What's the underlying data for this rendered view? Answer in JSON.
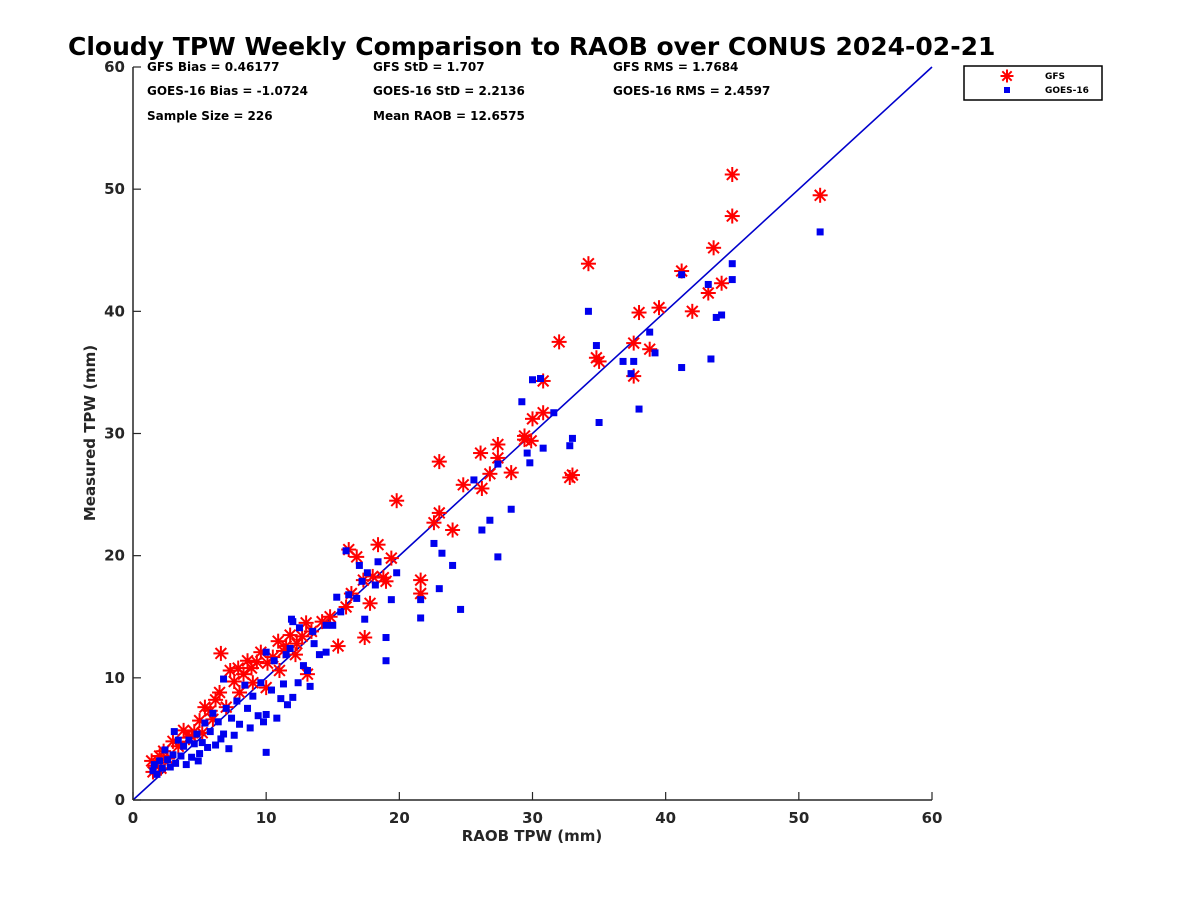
{
  "chart_data": {
    "type": "scatter",
    "title": "Cloudy TPW Weekly Comparison to RAOB over CONUS 2024-02-21",
    "xlabel": "RAOB TPW (mm)",
    "ylabel": "Measured TPW (mm)",
    "xlim": [
      0,
      60
    ],
    "ylim": [
      0,
      60
    ],
    "xticks": [
      "0",
      "10",
      "20",
      "30",
      "40",
      "50",
      "60"
    ],
    "yticks": [
      "0",
      "10",
      "20",
      "30",
      "40",
      "50",
      "60"
    ],
    "grid": false,
    "legend_position": "top-right",
    "stats": [
      [
        "GFS Bias = 0.46177",
        "GFS StD = 1.707",
        "GFS RMS = 1.7684"
      ],
      [
        "GOES-16 Bias = -1.0724",
        "GOES-16 StD = 2.2136",
        "GOES-16 RMS = 2.4597"
      ],
      [
        "Sample Size = 226",
        "Mean RAOB = 12.6575"
      ]
    ],
    "reference_line": {
      "from": [
        0,
        0
      ],
      "to": [
        60,
        60
      ],
      "color": "#0000cc"
    },
    "series": [
      {
        "name": "GFS",
        "marker": "asterisk",
        "color": "#ff0000",
        "points": [
          [
            51.6,
            49.5
          ],
          [
            45.0,
            51.2
          ],
          [
            45.0,
            47.8
          ],
          [
            34.2,
            43.9
          ],
          [
            41.2,
            43.3
          ],
          [
            43.6,
            45.2
          ],
          [
            44.2,
            42.3
          ],
          [
            43.2,
            41.5
          ],
          [
            42.0,
            40.0
          ],
          [
            39.5,
            40.3
          ],
          [
            38.0,
            39.9
          ],
          [
            38.8,
            36.9
          ],
          [
            37.6,
            37.4
          ],
          [
            37.6,
            34.7
          ],
          [
            34.8,
            36.2
          ],
          [
            35.0,
            35.9
          ],
          [
            32.0,
            37.5
          ],
          [
            30.8,
            34.3
          ],
          [
            30.8,
            31.7
          ],
          [
            30.0,
            31.2
          ],
          [
            29.4,
            29.5
          ],
          [
            29.9,
            29.4
          ],
          [
            29.4,
            29.8
          ],
          [
            27.4,
            29.1
          ],
          [
            27.4,
            28.0
          ],
          [
            26.1,
            28.4
          ],
          [
            26.8,
            26.7
          ],
          [
            28.4,
            26.8
          ],
          [
            32.8,
            26.4
          ],
          [
            33.0,
            26.6
          ],
          [
            26.2,
            25.5
          ],
          [
            24.8,
            25.8
          ],
          [
            23.0,
            27.7
          ],
          [
            19.8,
            24.5
          ],
          [
            23.0,
            23.5
          ],
          [
            22.6,
            22.7
          ],
          [
            24.0,
            22.1
          ],
          [
            21.6,
            18.0
          ],
          [
            21.6,
            16.9
          ],
          [
            19.4,
            19.8
          ],
          [
            19.0,
            17.9
          ],
          [
            18.8,
            18.2
          ],
          [
            18.4,
            20.9
          ],
          [
            18.0,
            18.3
          ],
          [
            17.8,
            16.1
          ],
          [
            17.3,
            18.0
          ],
          [
            16.8,
            19.9
          ],
          [
            16.2,
            20.5
          ],
          [
            16.4,
            16.9
          ],
          [
            16.0,
            15.8
          ],
          [
            15.4,
            12.6
          ],
          [
            17.4,
            13.3
          ],
          [
            14.2,
            14.6
          ],
          [
            13.4,
            13.8
          ],
          [
            13.1,
            10.3
          ],
          [
            12.7,
            13.4
          ],
          [
            12.3,
            12.8
          ],
          [
            11.8,
            13.5
          ],
          [
            11.3,
            12.2
          ],
          [
            10.9,
            13.0
          ],
          [
            10.5,
            11.7
          ],
          [
            10.1,
            11.2
          ],
          [
            9.6,
            12.1
          ],
          [
            9.3,
            11.3
          ],
          [
            8.9,
            10.8
          ],
          [
            8.6,
            11.4
          ],
          [
            8.3,
            10.3
          ],
          [
            7.9,
            10.8
          ],
          [
            7.6,
            9.7
          ],
          [
            7.3,
            10.6
          ],
          [
            6.6,
            12.0
          ],
          [
            6.5,
            8.8
          ],
          [
            6.2,
            8.2
          ],
          [
            5.8,
            7.3
          ],
          [
            5.4,
            7.6
          ],
          [
            5.0,
            6.5
          ],
          [
            4.6,
            5.6
          ],
          [
            4.2,
            5.1
          ],
          [
            3.8,
            5.7
          ],
          [
            3.4,
            4.4
          ],
          [
            3.0,
            4.8
          ],
          [
            2.6,
            3.4
          ],
          [
            2.3,
            4.0
          ],
          [
            2.0,
            3.6
          ],
          [
            1.7,
            2.8
          ],
          [
            1.5,
            2.3
          ],
          [
            1.4,
            3.2
          ],
          [
            2.1,
            2.6
          ],
          [
            10.0,
            9.2
          ],
          [
            11.5,
            12.6
          ],
          [
            12.2,
            11.9
          ],
          [
            13.0,
            14.5
          ],
          [
            14.8,
            15.0
          ],
          [
            9.0,
            9.6
          ],
          [
            8.0,
            8.8
          ],
          [
            7.0,
            7.6
          ],
          [
            11.0,
            10.6
          ],
          [
            6.0,
            6.6
          ],
          [
            5.2,
            5.5
          ],
          [
            4.4,
            5.2
          ]
        ]
      },
      {
        "name": "GOES-16",
        "marker": "square",
        "color": "#0000ee",
        "points": [
          [
            51.6,
            46.5
          ],
          [
            45.0,
            43.9
          ],
          [
            45.0,
            42.6
          ],
          [
            43.2,
            42.2
          ],
          [
            41.2,
            43.0
          ],
          [
            44.2,
            39.7
          ],
          [
            43.8,
            39.5
          ],
          [
            43.4,
            36.1
          ],
          [
            41.2,
            35.4
          ],
          [
            38.8,
            38.3
          ],
          [
            39.2,
            36.6
          ],
          [
            38.0,
            32.0
          ],
          [
            37.6,
            35.9
          ],
          [
            37.4,
            34.9
          ],
          [
            36.8,
            35.9
          ],
          [
            34.2,
            40.0
          ],
          [
            34.8,
            37.2
          ],
          [
            35.0,
            30.9
          ],
          [
            32.8,
            29.0
          ],
          [
            33.0,
            29.6
          ],
          [
            31.6,
            31.7
          ],
          [
            30.6,
            34.5
          ],
          [
            30.0,
            34.4
          ],
          [
            29.2,
            32.6
          ],
          [
            30.8,
            28.8
          ],
          [
            29.6,
            28.4
          ],
          [
            29.8,
            27.6
          ],
          [
            27.4,
            27.5
          ],
          [
            28.4,
            23.8
          ],
          [
            27.4,
            19.9
          ],
          [
            26.8,
            22.9
          ],
          [
            26.2,
            22.1
          ],
          [
            25.6,
            26.2
          ],
          [
            23.2,
            20.2
          ],
          [
            22.6,
            21.0
          ],
          [
            24.0,
            19.2
          ],
          [
            23.0,
            17.3
          ],
          [
            24.6,
            15.6
          ],
          [
            21.6,
            16.4
          ],
          [
            21.6,
            14.9
          ],
          [
            19.8,
            18.6
          ],
          [
            19.4,
            16.4
          ],
          [
            19.0,
            13.3
          ],
          [
            19.0,
            11.4
          ],
          [
            18.4,
            19.5
          ],
          [
            18.2,
            17.6
          ],
          [
            17.6,
            18.6
          ],
          [
            17.2,
            17.9
          ],
          [
            17.0,
            19.2
          ],
          [
            17.4,
            14.8
          ],
          [
            16.8,
            16.5
          ],
          [
            16.2,
            16.8
          ],
          [
            16.0,
            20.4
          ],
          [
            15.6,
            15.4
          ],
          [
            15.3,
            16.6
          ],
          [
            15.0,
            14.3
          ],
          [
            14.5,
            14.3
          ],
          [
            14.5,
            12.1
          ],
          [
            13.5,
            13.8
          ],
          [
            13.1,
            10.6
          ],
          [
            13.3,
            9.3
          ],
          [
            12.5,
            14.1
          ],
          [
            12.0,
            14.6
          ],
          [
            11.8,
            12.4
          ],
          [
            12.4,
            9.6
          ],
          [
            12.0,
            8.4
          ],
          [
            11.5,
            11.9
          ],
          [
            11.3,
            9.5
          ],
          [
            11.1,
            8.3
          ],
          [
            10.6,
            11.4
          ],
          [
            10.4,
            9.0
          ],
          [
            10.0,
            12.1
          ],
          [
            10.0,
            7.0
          ],
          [
            10.0,
            3.9
          ],
          [
            9.6,
            9.6
          ],
          [
            9.4,
            6.9
          ],
          [
            9.0,
            8.5
          ],
          [
            8.6,
            7.5
          ],
          [
            8.4,
            9.4
          ],
          [
            8.0,
            6.2
          ],
          [
            7.8,
            8.1
          ],
          [
            7.6,
            5.3
          ],
          [
            7.4,
            6.7
          ],
          [
            7.0,
            7.5
          ],
          [
            6.8,
            9.9
          ],
          [
            6.8,
            5.4
          ],
          [
            6.4,
            6.4
          ],
          [
            6.2,
            4.5
          ],
          [
            6.0,
            7.1
          ],
          [
            5.8,
            5.6
          ],
          [
            5.6,
            4.3
          ],
          [
            5.4,
            6.3
          ],
          [
            5.0,
            3.8
          ],
          [
            4.8,
            5.4
          ],
          [
            4.6,
            4.6
          ],
          [
            4.4,
            3.5
          ],
          [
            4.2,
            4.9
          ],
          [
            4.0,
            2.9
          ],
          [
            3.8,
            4.4
          ],
          [
            3.6,
            3.6
          ],
          [
            3.4,
            4.9
          ],
          [
            3.2,
            3.0
          ],
          [
            3.0,
            3.7
          ],
          [
            2.8,
            2.7
          ],
          [
            2.6,
            3.3
          ],
          [
            2.4,
            4.1
          ],
          [
            2.2,
            2.6
          ],
          [
            2.0,
            3.2
          ],
          [
            1.8,
            2.1
          ],
          [
            1.6,
            2.9
          ],
          [
            1.5,
            2.4
          ],
          [
            3.1,
            5.6
          ],
          [
            7.2,
            4.2
          ],
          [
            8.8,
            5.9
          ],
          [
            11.9,
            14.8
          ],
          [
            12.8,
            11.0
          ],
          [
            13.6,
            12.8
          ],
          [
            14.0,
            11.9
          ],
          [
            9.8,
            6.4
          ],
          [
            6.6,
            5.0
          ],
          [
            5.2,
            4.7
          ],
          [
            4.9,
            3.2
          ],
          [
            10.8,
            6.7
          ],
          [
            11.6,
            7.8
          ]
        ]
      }
    ]
  }
}
